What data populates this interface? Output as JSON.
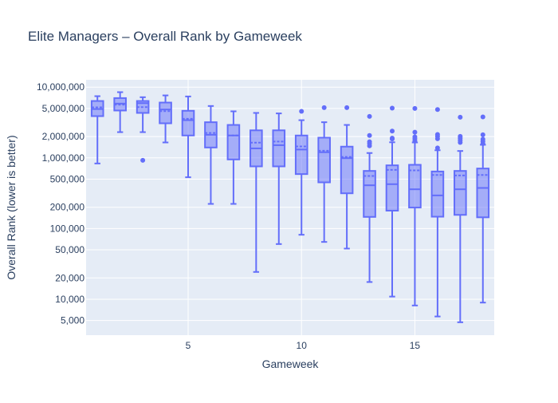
{
  "chart_data": {
    "type": "box",
    "title": "Elite Managers – Overall Rank by Gameweek",
    "xlabel": "Gameweek",
    "ylabel": "Overall Rank (lower is better)",
    "y_scale": "log",
    "ylim": [
      3100,
      12700000
    ],
    "xlim": [
      0.5,
      18.5
    ],
    "x_ticks": [
      5,
      10,
      15
    ],
    "x_tick_labels": [
      "5",
      "10",
      "15"
    ],
    "y_ticks": [
      5000,
      10000,
      20000,
      50000,
      100000,
      200000,
      500000,
      1000000,
      2000000,
      5000000,
      10000000
    ],
    "y_tick_labels": [
      "5,000",
      "10,000",
      "20,000",
      "50,000",
      "100,000",
      "200,000",
      "500,000",
      "1,000,000",
      "2,000,000",
      "5,000,000",
      "10,000,000"
    ],
    "grid": true,
    "show_mean": true,
    "colors": {
      "box": "#636efa",
      "plot_bg": "#e5ecf6",
      "grid": "#ffffff",
      "text": "#2a3f5f"
    },
    "boxes": [
      {
        "x": 1,
        "lower": 832000,
        "q1": 3890000,
        "median": 4900000,
        "mean": 5180000,
        "q3": 6370000,
        "upper": 7450000,
        "outliers": []
      },
      {
        "x": 2,
        "lower": 2310000,
        "q1": 4670000,
        "median": 5850000,
        "mean": 5650000,
        "q3": 7000000,
        "upper": 8490000,
        "outliers": []
      },
      {
        "x": 3,
        "lower": 2310000,
        "q1": 4320000,
        "median": 5940000,
        "mean": 5220000,
        "q3": 6370000,
        "upper": 7200000,
        "outliers": [
          922000
        ]
      },
      {
        "x": 4,
        "lower": 1650000,
        "q1": 3080000,
        "median": 4830000,
        "mean": 4580000,
        "q3": 6050000,
        "upper": 7640000,
        "outliers": []
      },
      {
        "x": 5,
        "lower": 531000,
        "q1": 2070000,
        "median": 3410000,
        "mean": 3570000,
        "q3": 4630000,
        "upper": 7380000,
        "outliers": []
      },
      {
        "x": 6,
        "lower": 223000,
        "q1": 1400000,
        "median": 2120000,
        "mean": 2250000,
        "q3": 3190000,
        "upper": 5410000,
        "outliers": []
      },
      {
        "x": 7,
        "lower": 223000,
        "q1": 949000,
        "median": 2070000,
        "mean": 2070000,
        "q3": 2920000,
        "upper": 4550000,
        "outliers": []
      },
      {
        "x": 8,
        "lower": 24300,
        "q1": 757000,
        "median": 1360000,
        "mean": 1640000,
        "q3": 2450000,
        "upper": 4320000,
        "outliers": []
      },
      {
        "x": 9,
        "lower": 60300,
        "q1": 757000,
        "median": 1510000,
        "mean": 1700000,
        "q3": 2450000,
        "upper": 4250000,
        "outliers": []
      },
      {
        "x": 10,
        "lower": 81600,
        "q1": 589000,
        "median": 1310000,
        "mean": 1450000,
        "q3": 2070000,
        "upper": 3410000,
        "outliers": [
          4550000
        ]
      },
      {
        "x": 11,
        "lower": 64600,
        "q1": 450000,
        "median": 1200000,
        "mean": 1260000,
        "q3": 1930000,
        "upper": 3190000,
        "outliers": [
          5130000
        ]
      },
      {
        "x": 12,
        "lower": 52000,
        "q1": 315000,
        "median": 989000,
        "mean": 1030000,
        "q3": 1440000,
        "upper": 2920000,
        "outliers": [
          5130000
        ]
      },
      {
        "x": 13,
        "lower": 17500,
        "q1": 146000,
        "median": 409000,
        "mean": 554000,
        "q3": 653000,
        "upper": 1170000,
        "outliers": [
          3850000,
          2070000,
          1690000,
          1590000,
          1480000
        ]
      },
      {
        "x": 14,
        "lower": 10900,
        "q1": 179000,
        "median": 424000,
        "mean": 676000,
        "q3": 783000,
        "upper": 1660000,
        "outliers": [
          5050000,
          2390000,
          1900000,
          1850000
        ]
      },
      {
        "x": 15,
        "lower": 8150,
        "q1": 198000,
        "median": 359000,
        "mean": 664000,
        "q3": 797000,
        "upper": 1650000,
        "outliers": [
          5000000,
          2310000,
          1980000,
          1860000,
          1740000
        ]
      },
      {
        "x": 16,
        "lower": 5700,
        "q1": 147000,
        "median": 294000,
        "mean": 573000,
        "q3": 641000,
        "upper": 1280000,
        "outliers": [
          4830000,
          2140000,
          2010000,
          1860000,
          1380000
        ]
      },
      {
        "x": 17,
        "lower": 4720,
        "q1": 156000,
        "median": 359000,
        "mean": 563000,
        "q3": 653000,
        "upper": 1250000,
        "outliers": [
          3760000,
          2010000,
          1900000,
          1770000,
          1650000
        ]
      },
      {
        "x": 18,
        "lower": 8960,
        "q1": 144000,
        "median": 375000,
        "mean": 573000,
        "q3": 706000,
        "upper": 1530000,
        "outliers": [
          3790000,
          2120000,
          1830000,
          1710000,
          1590000
        ]
      }
    ]
  }
}
